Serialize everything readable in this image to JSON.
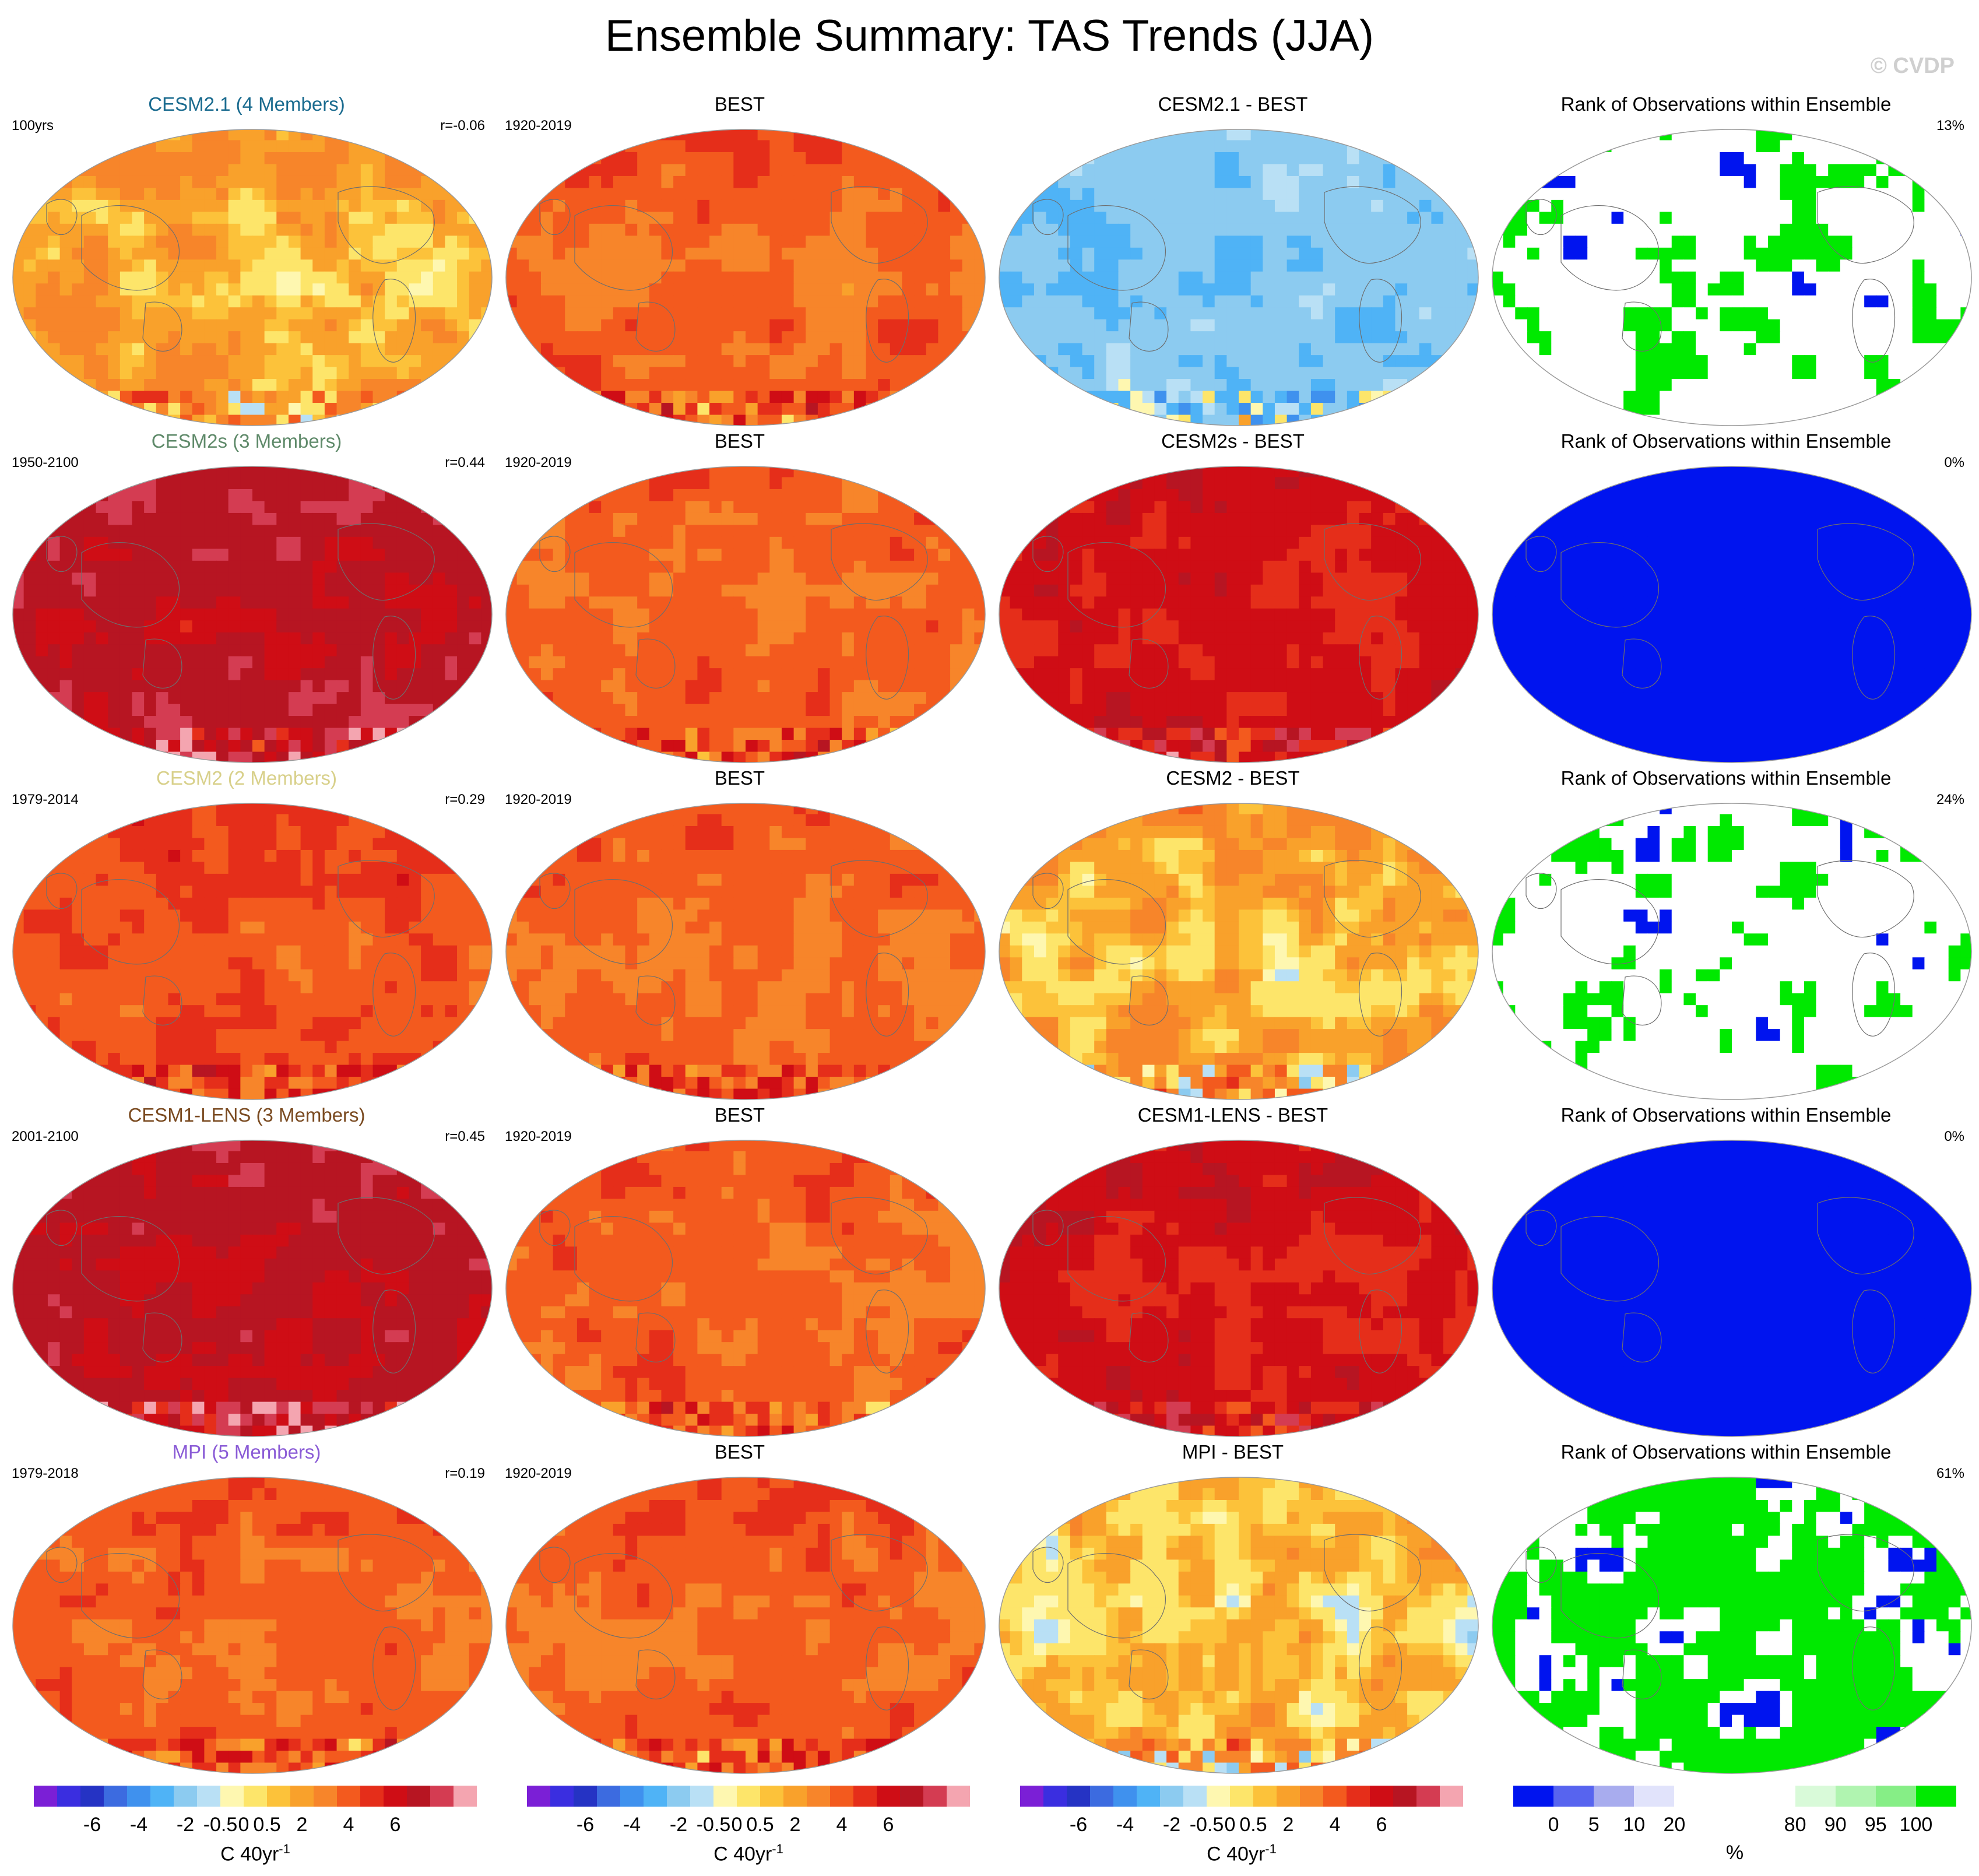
{
  "title": "Ensemble Summary: TAS Trends (JJA)",
  "credit": "© CVDP",
  "palettes": {
    "trend": [
      "#7b1fd6",
      "#3a2ee0",
      "#2533c4",
      "#3c6be0",
      "#3f91ee",
      "#4fb3f6",
      "#8ccbf0",
      "#b9e0f5",
      "#fef7b0",
      "#fde56a",
      "#fcc23a",
      "#f9a12b",
      "#f7852a",
      "#f35a1e",
      "#e52e1a",
      "#cf0d15",
      "#b71522",
      "#d43c52",
      "#f4a5b0"
    ],
    "rank": [
      "#0014ef",
      "#5764ef",
      "#a8acee",
      "#e1e3fb",
      "#ffffff",
      "#ffffff",
      "#ffffff",
      "#d9fad9",
      "#b0f4b0",
      "#86ee86",
      "#00e900"
    ]
  },
  "colorbars": {
    "trend_ticks": [
      "-6",
      "-4",
      "-2",
      "-0.5",
      "0",
      "0.5",
      "2",
      "4",
      "6"
    ],
    "trend_unit": "C 40yr",
    "trend_unit_sup": "-1",
    "rank_ticks": [
      "0",
      "5",
      "10",
      "20",
      "80",
      "90",
      "95",
      "100"
    ],
    "rank_unit": "%"
  },
  "chart_data": {
    "type": "heatmap",
    "projection": "Robinson",
    "rows": [
      {
        "model": {
          "title": "CESM2.1 (4 Members)",
          "title_color": "#1a6b8f",
          "period": "100yrs",
          "corr": "r=-0.06",
          "level": 0.5
        },
        "obs": {
          "title": "BEST",
          "period": "1920-2019",
          "level": 2
        },
        "diff": {
          "title": "CESM2.1 - BEST",
          "level": -2
        },
        "rank": {
          "title": "Rank of Observations within Ensemble",
          "pct": "13%"
        }
      },
      {
        "model": {
          "title": "CESM2s (3 Members)",
          "title_color": "#5f8a6a",
          "period": "1950-2100",
          "corr": "r=0.44",
          "level": 5
        },
        "obs": {
          "title": "BEST",
          "period": "1920-2019",
          "level": 2
        },
        "diff": {
          "title": "CESM2s - BEST",
          "level": 4
        },
        "rank": {
          "title": "Rank of Observations within Ensemble",
          "pct": "0%"
        }
      },
      {
        "model": {
          "title": "CESM2 (2 Members)",
          "title_color": "#d8d08a",
          "period": "1979-2014",
          "corr": "r=0.29",
          "level": 2.5
        },
        "obs": {
          "title": "BEST",
          "period": "1920-2019",
          "level": 2
        },
        "diff": {
          "title": "CESM2 - BEST",
          "level": 0.3
        },
        "rank": {
          "title": "Rank of Observations within Ensemble",
          "pct": "24%"
        }
      },
      {
        "model": {
          "title": "CESM1-LENS (3 Members)",
          "title_color": "#7a4a20",
          "period": "2001-2100",
          "corr": "r=0.45",
          "level": 5
        },
        "obs": {
          "title": "BEST",
          "period": "1920-2019",
          "level": 2
        },
        "diff": {
          "title": "CESM1-LENS - BEST",
          "level": 4
        },
        "rank": {
          "title": "Rank of Observations within Ensemble",
          "pct": "0%"
        }
      },
      {
        "model": {
          "title": "MPI (5 Members)",
          "title_color": "#8a5bd6",
          "period": "1979-2018",
          "corr": "r=0.19",
          "level": 2
        },
        "obs": {
          "title": "BEST",
          "period": "1920-2019",
          "level": 2
        },
        "diff": {
          "title": "MPI - BEST",
          "level": 0
        },
        "rank": {
          "title": "Rank of Observations within Ensemble",
          "pct": "61%"
        }
      }
    ]
  }
}
